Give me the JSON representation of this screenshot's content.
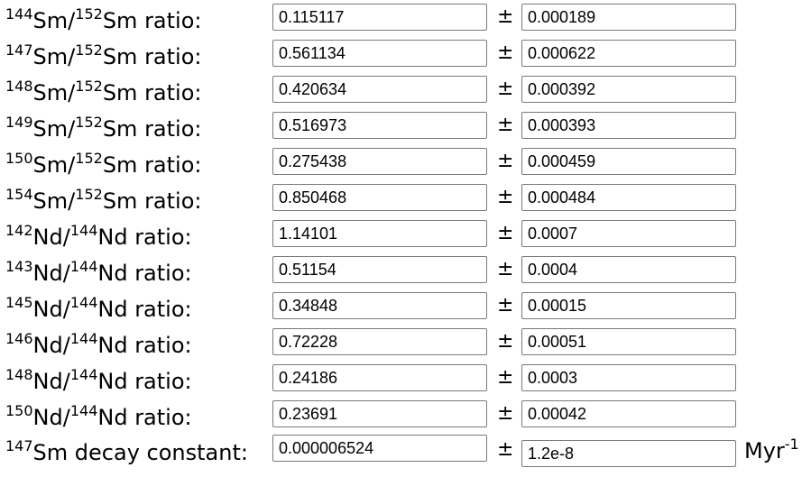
{
  "rows": [
    {
      "num": "144",
      "el": "Sm",
      "den": "152",
      "den_el": "Sm",
      "suffix": " ratio:",
      "value": "0.115117",
      "error": "0.000189"
    },
    {
      "num": "147",
      "el": "Sm",
      "den": "152",
      "den_el": "Sm",
      "suffix": " ratio:",
      "value": "0.561134",
      "error": "0.000622"
    },
    {
      "num": "148",
      "el": "Sm",
      "den": "152",
      "den_el": "Sm",
      "suffix": " ratio:",
      "value": "0.420634",
      "error": "0.000392"
    },
    {
      "num": "149",
      "el": "Sm",
      "den": "152",
      "den_el": "Sm",
      "suffix": " ratio:",
      "value": "0.516973",
      "error": "0.000393"
    },
    {
      "num": "150",
      "el": "Sm",
      "den": "152",
      "den_el": "Sm",
      "suffix": " ratio:",
      "value": "0.275438",
      "error": "0.000459"
    },
    {
      "num": "154",
      "el": "Sm",
      "den": "152",
      "den_el": "Sm",
      "suffix": " ratio:",
      "value": "0.850468",
      "error": "0.000484"
    },
    {
      "num": "142",
      "el": "Nd",
      "den": "144",
      "den_el": "Nd",
      "suffix": " ratio:",
      "value": "1.14101",
      "error": "0.0007"
    },
    {
      "num": "143",
      "el": "Nd",
      "den": "144",
      "den_el": "Nd",
      "suffix": " ratio:",
      "value": "0.51154",
      "error": "0.0004"
    },
    {
      "num": "145",
      "el": "Nd",
      "den": "144",
      "den_el": "Nd",
      "suffix": " ratio:",
      "value": "0.34848",
      "error": "0.00015"
    },
    {
      "num": "146",
      "el": "Nd",
      "den": "144",
      "den_el": "Nd",
      "suffix": " ratio:",
      "value": "0.72228",
      "error": "0.00051"
    },
    {
      "num": "148",
      "el": "Nd",
      "den": "144",
      "den_el": "Nd",
      "suffix": " ratio:",
      "value": "0.24186",
      "error": "0.0003"
    },
    {
      "num": "150",
      "el": "Nd",
      "den": "144",
      "den_el": "Nd",
      "suffix": " ratio:",
      "value": "0.23691",
      "error": "0.00042"
    }
  ],
  "decay": {
    "num": "147",
    "el": "Sm",
    "suffix": " decay constant:",
    "value": "0.000006524",
    "error": "1.2e-8",
    "unit_base": "Myr",
    "unit_exp": "-1"
  },
  "pm_symbol": "±"
}
